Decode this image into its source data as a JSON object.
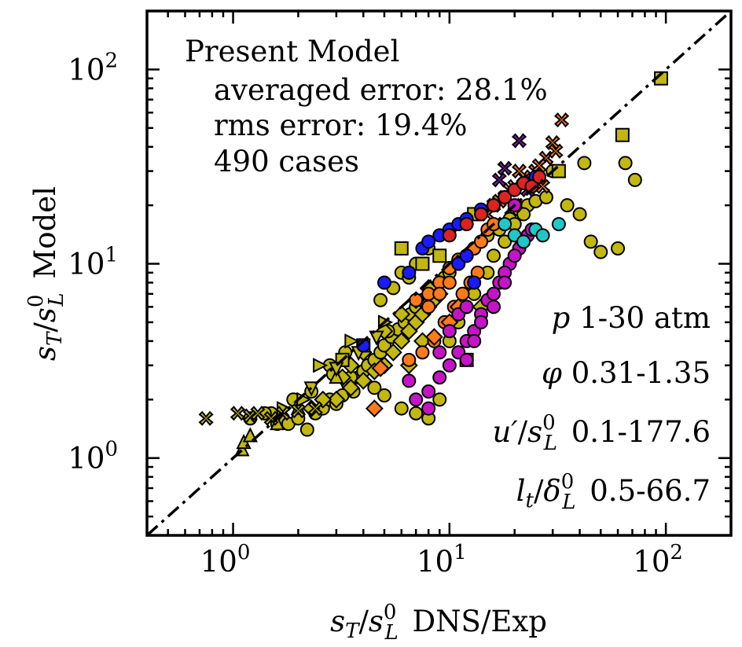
{
  "chart_data": {
    "type": "scatter",
    "title": "Present Model",
    "annotations": {
      "averaged_error": "averaged error: 28.1%",
      "rms_error": "rms error: 19.4%",
      "cases": "490 cases"
    },
    "xlabel": "s_T/s_L^0 DNS/Exp",
    "ylabel": "s_T/s_L^0 Model",
    "x_scale": "log",
    "y_scale": "log",
    "xlim": [
      0.4,
      200
    ],
    "ylim": [
      0.4,
      200
    ],
    "x_ticks": [
      1,
      10,
      100
    ],
    "y_ticks": [
      1,
      10,
      100
    ],
    "reference_line": {
      "style": "dash-dot",
      "relation": "y = x"
    },
    "ranges": {
      "p": "1-30 atm",
      "phi": "0.31-1.35",
      "u_prime": "0.1-177.6",
      "lt": "0.5-66.7"
    },
    "colors": {
      "olive": "#c2b80f",
      "orange": "#ff7a1a",
      "magenta": "#c713c7",
      "blue": "#1a1aff",
      "cyan": "#1ec8c8",
      "red": "#dd2222",
      "purple": "#8a1ab8"
    },
    "series": [
      {
        "name": "olive-circles",
        "marker": "circle",
        "color": "olive",
        "points": [
          [
            1.5,
            1.7
          ],
          [
            1.6,
            1.5
          ],
          [
            1.7,
            1.6
          ],
          [
            1.8,
            1.5
          ],
          [
            2.0,
            1.6
          ],
          [
            2.2,
            1.4
          ],
          [
            2.4,
            1.7
          ],
          [
            2.6,
            1.8
          ],
          [
            2.8,
            2.0
          ],
          [
            3.0,
            1.9
          ],
          [
            3.2,
            2.1
          ],
          [
            3.4,
            2.4
          ],
          [
            3.6,
            2.2
          ],
          [
            3.8,
            2.6
          ],
          [
            4.0,
            2.8
          ],
          [
            4.2,
            3.0
          ],
          [
            4.5,
            3.2
          ],
          [
            4.8,
            3.5
          ],
          [
            5.0,
            3.8
          ],
          [
            5.4,
            4.2
          ],
          [
            5.8,
            4.6
          ],
          [
            6.2,
            5.0
          ],
          [
            6.6,
            5.5
          ],
          [
            7.0,
            6.0
          ],
          [
            7.5,
            6.5
          ],
          [
            8.0,
            7.0
          ],
          [
            8.5,
            7.5
          ],
          [
            9.0,
            8.0
          ],
          [
            9.5,
            8.5
          ],
          [
            10,
            9.0
          ],
          [
            11,
            10
          ],
          [
            12,
            11
          ],
          [
            13,
            12
          ],
          [
            14,
            13
          ],
          [
            15,
            14
          ],
          [
            17,
            15
          ],
          [
            19,
            17
          ],
          [
            21,
            19
          ],
          [
            23,
            20
          ],
          [
            25,
            21
          ],
          [
            28,
            22
          ],
          [
            40,
            18
          ],
          [
            45,
            13
          ],
          [
            50,
            11.5
          ],
          [
            60,
            12
          ],
          [
            65,
            33
          ],
          [
            72,
            27
          ],
          [
            42,
            33
          ],
          [
            35,
            20
          ],
          [
            30,
            30
          ],
          [
            8,
            1.6
          ],
          [
            7,
            1.7
          ],
          [
            9,
            2.0
          ],
          [
            6,
            1.8
          ],
          [
            5,
            2.1
          ],
          [
            4.5,
            2.3
          ],
          [
            3.5,
            2.6
          ],
          [
            2.8,
            3.0
          ],
          [
            6,
            9
          ],
          [
            5.5,
            7.5
          ],
          [
            4.8,
            6.5
          ],
          [
            7,
            10
          ],
          [
            8,
            12
          ],
          [
            6.5,
            8.5
          ],
          [
            5.2,
            4.5
          ],
          [
            3.3,
            3.5
          ],
          [
            2.9,
            2.7
          ],
          [
            2.3,
            2.2
          ],
          [
            1.9,
            2.0
          ],
          [
            1.4,
            1.7
          ],
          [
            1.2,
            1.6
          ],
          [
            10,
            4
          ],
          [
            11,
            5
          ],
          [
            12,
            6
          ],
          [
            13,
            7
          ],
          [
            15,
            9
          ],
          [
            16,
            11
          ],
          [
            18,
            13
          ],
          [
            20,
            16
          ],
          [
            22,
            18
          ]
        ]
      },
      {
        "name": "olive-diamonds",
        "marker": "diamond",
        "color": "olive",
        "points": [
          [
            3,
            2
          ],
          [
            3.5,
            2.3
          ],
          [
            4,
            2.5
          ],
          [
            4.5,
            2.8
          ],
          [
            5,
            3.0
          ],
          [
            5.5,
            3.5
          ],
          [
            6,
            4.0
          ],
          [
            6.5,
            4.5
          ],
          [
            7,
            5.0
          ],
          [
            7.5,
            5.5
          ],
          [
            8,
            6.0
          ],
          [
            8.5,
            6.5
          ],
          [
            9,
            7.0
          ],
          [
            5,
            4.5
          ],
          [
            6,
            5.5
          ],
          [
            7,
            6.5
          ],
          [
            8,
            7.5
          ],
          [
            4,
            3.5
          ],
          [
            3.5,
            3.0
          ],
          [
            3.2,
            2.6
          ],
          [
            2.6,
            2.0
          ],
          [
            2.3,
            1.8
          ],
          [
            14,
            6
          ],
          [
            6.5,
            3.0
          ],
          [
            7.5,
            4.0
          ]
        ]
      },
      {
        "name": "olive-squares",
        "marker": "square",
        "color": "olive",
        "points": [
          [
            95,
            90
          ],
          [
            63,
            46
          ],
          [
            32,
            30
          ],
          [
            13,
            18
          ],
          [
            6,
            12
          ],
          [
            12,
            3.2
          ],
          [
            9,
            11
          ],
          [
            7.5,
            10
          ],
          [
            4,
            3.8
          ],
          [
            3.2,
            3.2
          ]
        ]
      },
      {
        "name": "olive-triangles",
        "marker": "triangle-up",
        "color": "olive",
        "points": [
          [
            1.1,
            1.1
          ],
          [
            1.12,
            1.2
          ],
          [
            1.2,
            1.3
          ],
          [
            1.6,
            1.5
          ],
          [
            2,
            1.8
          ],
          [
            3,
            2.6
          ]
        ]
      },
      {
        "name": "olive-right-triangles",
        "marker": "triangle-right",
        "color": "olive",
        "points": [
          [
            1.7,
            1.8
          ],
          [
            2.1,
            2.0
          ],
          [
            3.5,
            4.0
          ],
          [
            5.0,
            5.0
          ],
          [
            2.5,
            3.0
          ]
        ]
      },
      {
        "name": "olive-down-triangles",
        "marker": "triangle-down",
        "color": "olive",
        "points": [
          [
            2.3,
            2.3
          ],
          [
            3.0,
            2.9
          ],
          [
            3.8,
            3.5
          ],
          [
            4.6,
            4.2
          ]
        ]
      },
      {
        "name": "olive-crosses",
        "marker": "x",
        "color": "olive",
        "points": [
          [
            0.75,
            1.6
          ],
          [
            1.05,
            1.7
          ],
          [
            1.2,
            1.65
          ],
          [
            1.3,
            1.7
          ],
          [
            1.5,
            1.6
          ],
          [
            1.7,
            1.7
          ],
          [
            2.0,
            1.75
          ],
          [
            2.4,
            1.8
          ]
        ]
      },
      {
        "name": "orange-crosses",
        "marker": "x",
        "color": "orange",
        "points": [
          [
            33,
            55
          ],
          [
            30,
            42
          ],
          [
            28,
            35
          ],
          [
            25,
            30
          ],
          [
            22,
            28
          ],
          [
            20,
            25
          ],
          [
            18,
            22
          ],
          [
            16,
            20
          ],
          [
            15,
            18
          ],
          [
            26,
            32
          ],
          [
            24,
            26
          ],
          [
            19,
            24
          ],
          [
            17,
            21
          ],
          [
            31,
            38
          ],
          [
            21,
            30
          ],
          [
            27,
            25
          ]
        ]
      },
      {
        "name": "purple-crosses",
        "marker": "x",
        "color": "purple",
        "points": [
          [
            21,
            43
          ],
          [
            18,
            31
          ],
          [
            17,
            27
          ],
          [
            23,
            24
          ],
          [
            20,
            20
          ]
        ]
      },
      {
        "name": "orange-circles",
        "marker": "circle",
        "color": "orange",
        "points": [
          [
            7,
            6.5
          ],
          [
            8,
            7
          ],
          [
            9,
            8
          ],
          [
            10,
            9.5
          ],
          [
            11,
            10.5
          ],
          [
            12,
            11
          ],
          [
            13,
            12
          ],
          [
            14,
            13
          ],
          [
            15,
            15
          ],
          [
            16,
            16
          ],
          [
            10,
            8
          ],
          [
            9,
            7
          ],
          [
            8,
            6
          ],
          [
            6.5,
            3.2
          ],
          [
            7.5,
            3.5
          ],
          [
            8.5,
            4
          ],
          [
            9.5,
            5
          ],
          [
            10.5,
            6
          ],
          [
            11.5,
            7
          ],
          [
            12.5,
            8
          ],
          [
            13.5,
            9
          ]
        ]
      },
      {
        "name": "orange-diamonds",
        "marker": "diamond",
        "color": "orange",
        "points": [
          [
            4.8,
            2.9
          ],
          [
            4.5,
            1.8
          ],
          [
            8.5,
            4.2
          ],
          [
            10,
            5
          ],
          [
            11,
            6
          ]
        ]
      },
      {
        "name": "magenta-circles",
        "marker": "circle",
        "color": "magenta",
        "points": [
          [
            7,
            2.0
          ],
          [
            8,
            2.2
          ],
          [
            9,
            2.6
          ],
          [
            10,
            3.0
          ],
          [
            11,
            3.5
          ],
          [
            12,
            4.0
          ],
          [
            13,
            4.5
          ],
          [
            14,
            5.5
          ],
          [
            15,
            6.5
          ],
          [
            17,
            8
          ],
          [
            19,
            10
          ],
          [
            21,
            12
          ],
          [
            23,
            14
          ],
          [
            8,
            1.8
          ],
          [
            6.5,
            2.5
          ],
          [
            9,
            3.5
          ],
          [
            10,
            4.5
          ],
          [
            11,
            5.5
          ],
          [
            12,
            6
          ],
          [
            13,
            4
          ],
          [
            16,
            7
          ],
          [
            18,
            9
          ],
          [
            20,
            11
          ],
          [
            22,
            13
          ],
          [
            24,
            15
          ],
          [
            12,
            3.2
          ],
          [
            14,
            5
          ],
          [
            16,
            6
          ],
          [
            18,
            8
          ],
          [
            20,
            20
          ]
        ]
      },
      {
        "name": "blue-circles",
        "marker": "circle",
        "color": "blue",
        "points": [
          [
            7.5,
            12
          ],
          [
            8,
            13
          ],
          [
            9,
            14
          ],
          [
            10,
            15
          ],
          [
            11,
            16
          ],
          [
            12,
            17
          ],
          [
            14,
            19
          ],
          [
            16,
            20
          ],
          [
            18,
            22
          ],
          [
            20,
            24
          ],
          [
            22,
            26
          ],
          [
            25,
            28
          ],
          [
            13,
            8
          ],
          [
            4,
            3.8
          ],
          [
            5,
            8
          ],
          [
            6.5,
            9
          ],
          [
            11,
            10
          ],
          [
            12,
            11
          ]
        ]
      },
      {
        "name": "cyan-circles",
        "marker": "circle",
        "color": "cyan",
        "points": [
          [
            18,
            16
          ],
          [
            20,
            14
          ],
          [
            22,
            13
          ],
          [
            25,
            15
          ],
          [
            27,
            14
          ],
          [
            32,
            16
          ]
        ]
      },
      {
        "name": "red-circles",
        "marker": "circle",
        "color": "red",
        "points": [
          [
            16,
            20
          ],
          [
            18,
            22
          ],
          [
            20,
            24
          ],
          [
            22,
            26
          ],
          [
            24,
            25
          ],
          [
            26,
            28
          ],
          [
            14,
            18
          ],
          [
            12,
            16
          ],
          [
            10,
            14
          ]
        ]
      }
    ]
  }
}
